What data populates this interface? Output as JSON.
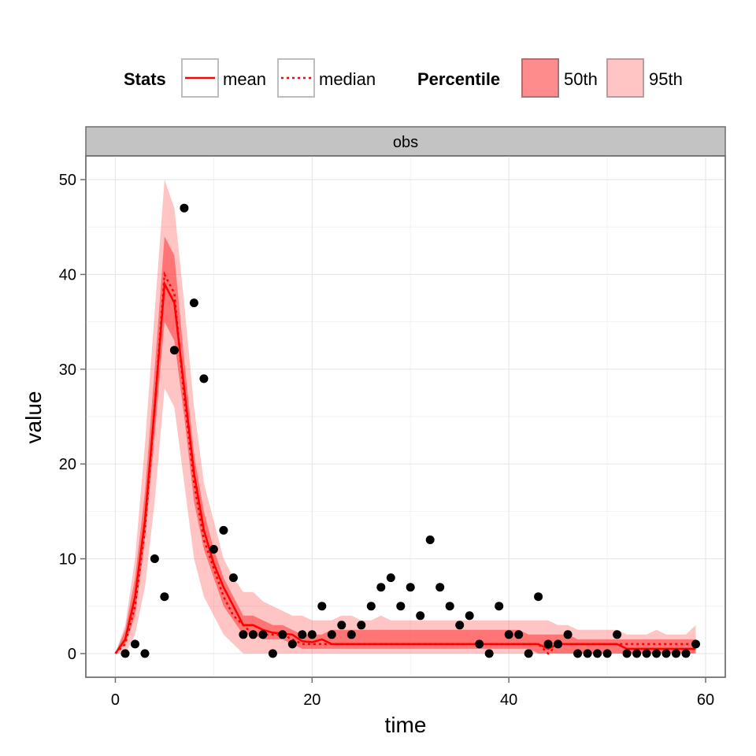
{
  "colors": {
    "line": "#ff0000",
    "band50": "#ff0000",
    "band95": "#ff3a3a",
    "point": "#000000",
    "strip": "#c3c3c3",
    "grid": "#e8e8e8"
  },
  "legend": {
    "stats_title": "Stats",
    "stats_items": [
      {
        "label": "mean",
        "style": "solid"
      },
      {
        "label": "median",
        "style": "dotted"
      }
    ],
    "pct_title": "Percentile",
    "pct_items": [
      {
        "label": "50th",
        "shade": "dark"
      },
      {
        "label": "95th",
        "shade": "light"
      }
    ]
  },
  "chart_data": {
    "type": "line",
    "facet": "obs",
    "xlabel": "time",
    "ylabel": "value",
    "xlim": [
      -3,
      62
    ],
    "ylim": [
      -2.5,
      52.5
    ],
    "xticks": [
      0,
      20,
      40,
      60
    ],
    "yticks": [
      0,
      10,
      20,
      30,
      40,
      50
    ],
    "grid": true,
    "legend_position": "top",
    "time": [
      0,
      1,
      2,
      3,
      4,
      5,
      6,
      7,
      8,
      9,
      10,
      11,
      12,
      13,
      14,
      15,
      16,
      17,
      18,
      19,
      20,
      21,
      22,
      23,
      24,
      25,
      26,
      27,
      28,
      29,
      30,
      31,
      32,
      33,
      34,
      35,
      36,
      37,
      38,
      39,
      40,
      41,
      42,
      43,
      44,
      45,
      46,
      47,
      48,
      49,
      50,
      51,
      52,
      53,
      54,
      55,
      56,
      57,
      58,
      59
    ],
    "mean": [
      0,
      1.5,
      6,
      14,
      26,
      39,
      37,
      28,
      19,
      13,
      9.5,
      7,
      5,
      3,
      3,
      2.5,
      2.2,
      2.1,
      2,
      1.3,
      1.2,
      1.5,
      1,
      1,
      1,
      1,
      1,
      1,
      1,
      1,
      1,
      1,
      1,
      1,
      1,
      1,
      1,
      1,
      1,
      1,
      1,
      1,
      1,
      1,
      0.5,
      1,
      1,
      1,
      1,
      1,
      1,
      1,
      0.5,
      0.5,
      0.5,
      0.5,
      0.5,
      0.5,
      0.5,
      0.5
    ],
    "median": [
      0,
      1,
      5,
      13,
      26,
      40,
      38,
      27,
      18,
      12,
      9,
      6,
      4,
      3,
      2,
      2,
      2,
      2,
      1.5,
      1,
      1,
      1,
      1,
      1,
      1,
      1,
      1,
      1,
      1,
      1,
      1,
      1,
      1,
      1,
      1,
      1,
      1,
      1,
      1,
      1,
      1,
      1,
      1,
      1,
      0,
      1,
      1,
      1,
      1,
      1,
      1,
      1,
      1,
      1,
      1,
      1,
      1,
      1,
      1,
      1
    ],
    "p50_low": [
      0,
      1,
      4,
      12,
      23,
      35,
      33,
      25,
      16,
      11,
      8,
      5,
      3.5,
      2,
      2,
      1.5,
      1.5,
      1.5,
      1,
      0.5,
      0.5,
      0.5,
      0.5,
      0.5,
      0.5,
      0.5,
      0.5,
      0.5,
      0.5,
      0.5,
      0.5,
      0.5,
      0.5,
      0.5,
      0.5,
      0.5,
      0.5,
      0.5,
      0.5,
      0.5,
      0.5,
      0.5,
      0.5,
      0,
      0,
      0,
      0,
      0,
      0,
      0,
      0,
      0,
      0,
      0,
      0,
      0,
      0,
      0,
      0,
      0
    ],
    "p50_high": [
      0,
      2.5,
      8,
      17,
      30,
      44,
      42,
      31,
      21,
      15,
      11,
      8,
      6,
      4,
      4,
      3.5,
      3,
      3,
      2.5,
      2,
      2,
      2,
      2.5,
      2.5,
      2.5,
      2.5,
      2.5,
      2.5,
      2.5,
      2.5,
      2.5,
      2.5,
      2.5,
      2.5,
      2.5,
      2.5,
      2.5,
      2.5,
      2.5,
      2.5,
      2.5,
      2.5,
      2,
      2,
      2,
      2,
      2,
      1.5,
      1.5,
      1.5,
      1.5,
      1.5,
      1.5,
      1.5,
      1.5,
      1.5,
      1.5,
      1.5,
      1.5,
      1.5
    ],
    "p95_low": [
      0,
      0,
      2,
      7,
      16,
      28,
      26,
      18,
      10,
      6,
      4,
      2,
      1,
      0,
      0,
      0,
      0,
      0,
      0,
      0,
      0,
      0,
      0,
      0,
      0,
      0,
      0,
      0,
      0,
      0,
      0,
      0,
      0,
      0,
      0,
      0,
      0,
      0,
      0,
      0,
      0,
      0,
      0,
      0,
      0,
      0,
      0,
      0,
      0,
      0,
      0,
      0,
      0,
      0,
      0,
      0,
      0,
      0,
      0,
      0
    ],
    "p95_high": [
      0,
      3,
      10,
      22,
      36,
      50,
      47,
      37,
      26,
      18,
      14,
      10,
      8,
      6.5,
      6.5,
      5.5,
      5,
      4.5,
      4,
      4,
      3.5,
      3.5,
      3.5,
      4,
      4,
      3.5,
      3.5,
      4,
      3.5,
      3.5,
      3.5,
      3.5,
      3.5,
      3.5,
      3.5,
      3.5,
      3.5,
      3.5,
      3.5,
      3.5,
      3.5,
      3.5,
      3.5,
      3.5,
      3.5,
      3,
      3,
      2.5,
      2.5,
      2.5,
      2.5,
      2.5,
      2,
      2,
      2,
      2.5,
      2,
      2,
      2,
      3
    ],
    "observed": [
      [
        1,
        0
      ],
      [
        2,
        1
      ],
      [
        3,
        0
      ],
      [
        4,
        10
      ],
      [
        5,
        6
      ],
      [
        6,
        32
      ],
      [
        7,
        47
      ],
      [
        8,
        37
      ],
      [
        9,
        29
      ],
      [
        10,
        11
      ],
      [
        11,
        13
      ],
      [
        12,
        8
      ],
      [
        13,
        2
      ],
      [
        14,
        2
      ],
      [
        15,
        2
      ],
      [
        16,
        0
      ],
      [
        17,
        2
      ],
      [
        18,
        1
      ],
      [
        19,
        2
      ],
      [
        20,
        2
      ],
      [
        21,
        5
      ],
      [
        22,
        2
      ],
      [
        23,
        3
      ],
      [
        24,
        2
      ],
      [
        25,
        3
      ],
      [
        26,
        5
      ],
      [
        27,
        7
      ],
      [
        28,
        8
      ],
      [
        29,
        5
      ],
      [
        30,
        7
      ],
      [
        31,
        4
      ],
      [
        32,
        12
      ],
      [
        33,
        7
      ],
      [
        34,
        5
      ],
      [
        35,
        3
      ],
      [
        36,
        4
      ],
      [
        37,
        1
      ],
      [
        38,
        0
      ],
      [
        39,
        5
      ],
      [
        40,
        2
      ],
      [
        41,
        2
      ],
      [
        42,
        0
      ],
      [
        43,
        6
      ],
      [
        44,
        1
      ],
      [
        45,
        1
      ],
      [
        46,
        2
      ],
      [
        47,
        0
      ],
      [
        48,
        0
      ],
      [
        49,
        0
      ],
      [
        50,
        0
      ],
      [
        51,
        2
      ],
      [
        52,
        0
      ],
      [
        53,
        0
      ],
      [
        54,
        0
      ],
      [
        55,
        0
      ],
      [
        56,
        0
      ],
      [
        57,
        0
      ],
      [
        58,
        0
      ],
      [
        59,
        1
      ]
    ]
  }
}
